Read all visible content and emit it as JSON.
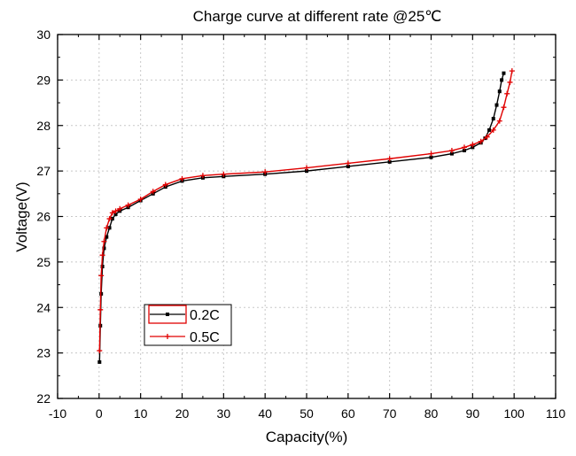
{
  "chart_data": {
    "type": "line",
    "title": "Charge curve at different rate @25℃",
    "xlabel": "Capacity(%)",
    "ylabel": "Voltage(V)",
    "xlim": [
      -10,
      110
    ],
    "ylim": [
      22,
      30
    ],
    "xticks": [
      -10,
      0,
      10,
      20,
      30,
      40,
      50,
      60,
      70,
      80,
      90,
      100,
      110
    ],
    "yticks": [
      22,
      23,
      24,
      25,
      26,
      27,
      28,
      29,
      30
    ],
    "grid": true,
    "legend_position": "lower-left",
    "series": [
      {
        "name": "0.2C",
        "color": "#000000",
        "marker": "square",
        "x": [
          0.1,
          0.3,
          0.5,
          0.8,
          1.2,
          1.8,
          2.5,
          3.2,
          4.0,
          5.0,
          7.0,
          10.0,
          13.0,
          16.0,
          20.0,
          25.0,
          30.0,
          40.0,
          50.0,
          60.0,
          70.0,
          80.0,
          85.0,
          88.0,
          90.0,
          92.0,
          93.0,
          94.0,
          95.0,
          95.8,
          96.5,
          97.0,
          97.5
        ],
        "y": [
          22.8,
          23.6,
          24.3,
          24.9,
          25.3,
          25.55,
          25.75,
          25.95,
          26.05,
          26.12,
          26.2,
          26.35,
          26.5,
          26.65,
          26.78,
          26.85,
          26.88,
          26.93,
          27.0,
          27.1,
          27.2,
          27.3,
          27.38,
          27.45,
          27.52,
          27.62,
          27.72,
          27.9,
          28.15,
          28.45,
          28.75,
          29.0,
          29.15
        ]
      },
      {
        "name": "0.5C",
        "color": "#e00000",
        "marker": "plus",
        "x": [
          0.1,
          0.3,
          0.5,
          0.8,
          1.2,
          1.8,
          2.5,
          3.2,
          4.0,
          5.0,
          7.0,
          10.0,
          13.0,
          16.0,
          20.0,
          25.0,
          30.0,
          40.0,
          50.0,
          60.0,
          70.0,
          80.0,
          85.0,
          88.0,
          90.0,
          92.0,
          93.5,
          95.0,
          96.5,
          97.5,
          98.3,
          99.0,
          99.5
        ],
        "y": [
          23.05,
          23.95,
          24.7,
          25.15,
          25.45,
          25.75,
          25.95,
          26.08,
          26.12,
          26.17,
          26.25,
          26.38,
          26.55,
          26.7,
          26.83,
          26.9,
          26.93,
          26.98,
          27.07,
          27.17,
          27.27,
          27.38,
          27.45,
          27.52,
          27.58,
          27.65,
          27.75,
          27.9,
          28.1,
          28.4,
          28.7,
          28.95,
          29.2
        ]
      }
    ]
  }
}
